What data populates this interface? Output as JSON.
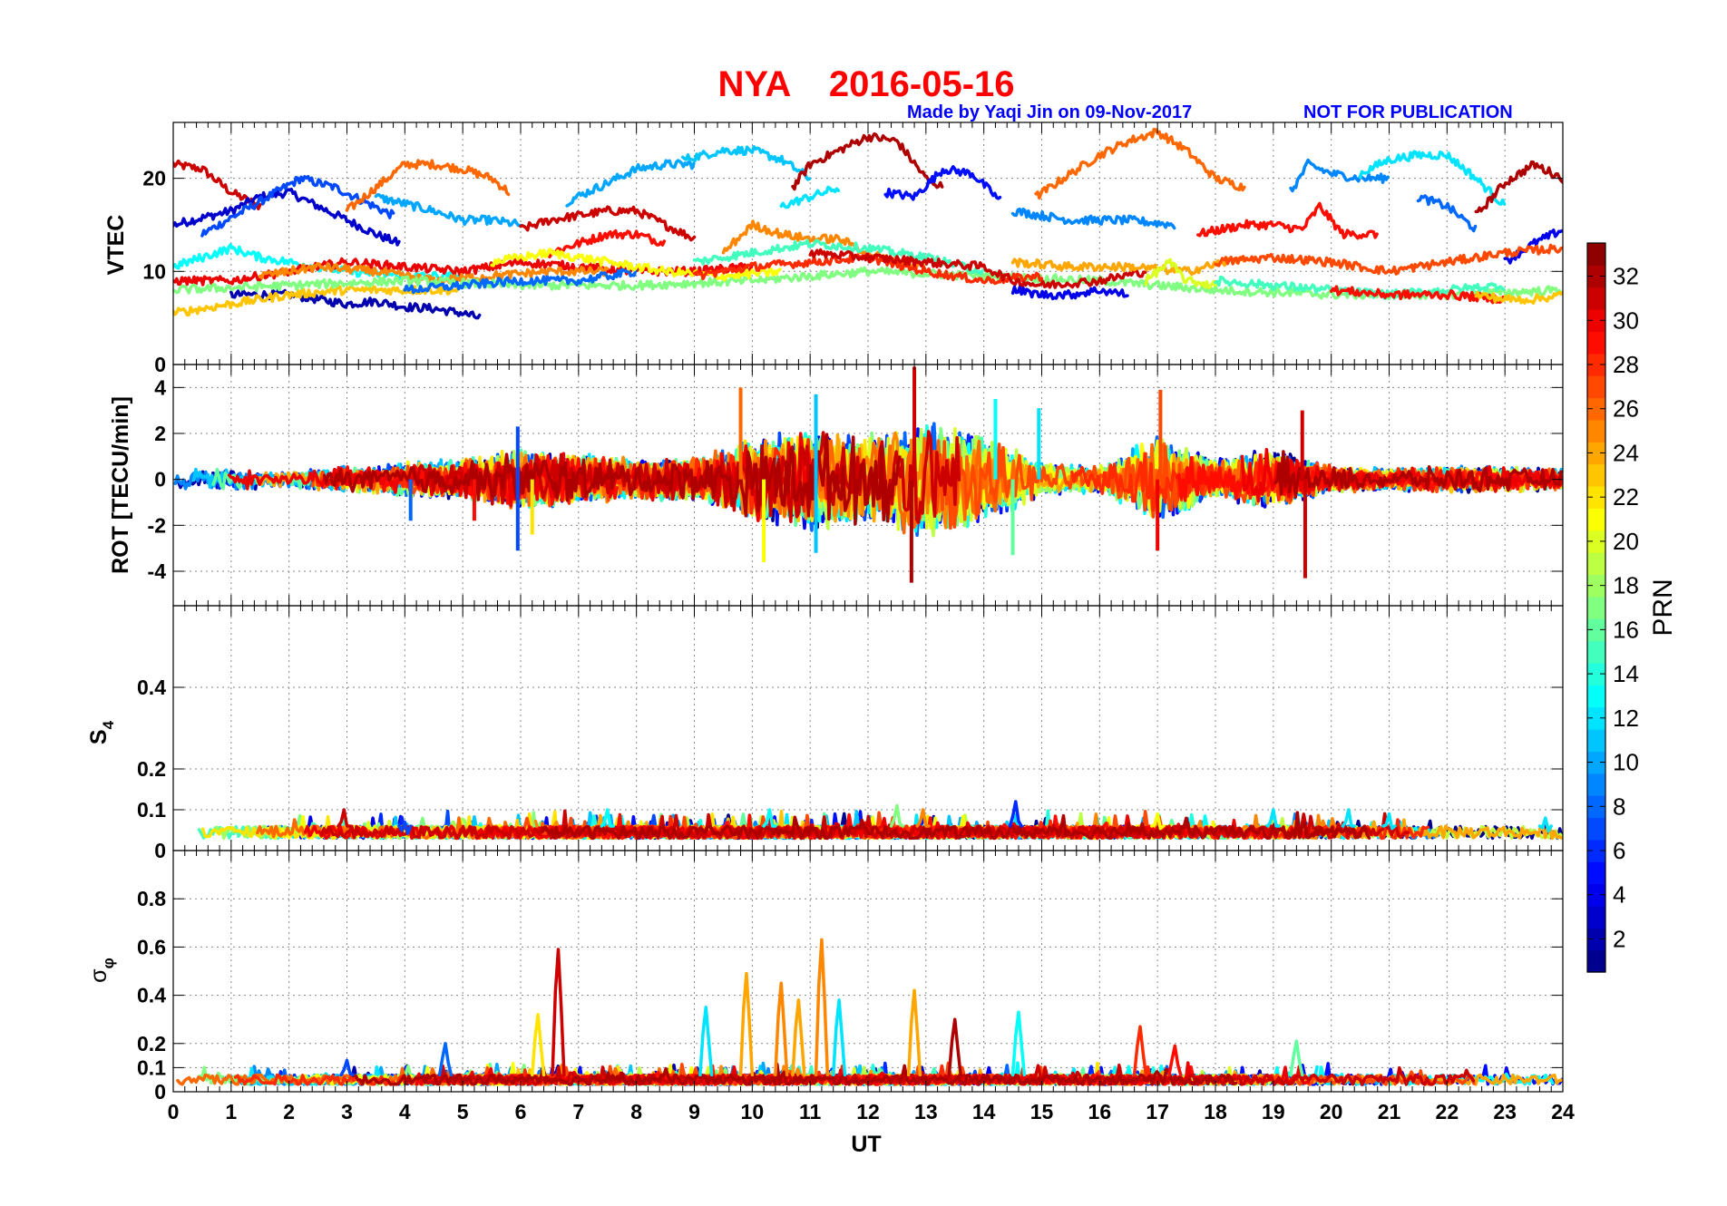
{
  "title": {
    "station": "NYA",
    "date": "2016-05-16"
  },
  "credit": {
    "made_by": "Made by Yaqi Jin on 09-Nov-2017",
    "notice": "NOT FOR PUBLICATION"
  },
  "chart_data": [
    {
      "type": "line",
      "panel": "vtec",
      "ylabel": "VTEC",
      "xlim": [
        0,
        24
      ],
      "ylim": [
        0,
        26
      ],
      "yticks": [
        0,
        10,
        20
      ],
      "ytick_labels": [
        "0",
        "10",
        "20"
      ],
      "grid": true,
      "series": [
        {
          "prn": 31,
          "x": [
            0,
            0.5,
            1,
            1.5
          ],
          "y": [
            21.5,
            21,
            18.5,
            17
          ]
        },
        {
          "prn": 3,
          "x": [
            0,
            1,
            1.5,
            2,
            2.5,
            3,
            3.5,
            3.9
          ],
          "y": [
            15,
            16.5,
            18,
            18.5,
            17,
            15.5,
            14,
            13
          ]
        },
        {
          "prn": 7,
          "x": [
            0.5,
            1.5,
            2.2,
            2.8,
            3.3,
            3.8
          ],
          "y": [
            14,
            17.5,
            20,
            19,
            17.5,
            16
          ]
        },
        {
          "prn": 2,
          "x": [
            1,
            2,
            2.5,
            3,
            3.5,
            4,
            4.5,
            5,
            5.3
          ],
          "y": [
            7.5,
            7.5,
            7,
            6.5,
            6.8,
            6.2,
            6,
            5.5,
            5
          ]
        },
        {
          "prn": 26,
          "x": [
            3,
            3.5,
            4,
            4.5,
            5,
            5.5,
            5.8
          ],
          "y": [
            16.5,
            19,
            21.5,
            21.5,
            21,
            20,
            18.5
          ]
        },
        {
          "prn": 10,
          "x": [
            3.5,
            4.5,
            5,
            5.5,
            6
          ],
          "y": [
            18,
            16.5,
            15.5,
            15.5,
            15
          ]
        },
        {
          "prn": 31,
          "x": [
            6,
            6.5,
            7,
            7.5,
            8,
            8.5,
            9
          ],
          "y": [
            14.5,
            15.5,
            16,
            16.5,
            16.5,
            15,
            13.5
          ]
        },
        {
          "prn": 29,
          "x": [
            6.5,
            7,
            7.5,
            8,
            8.5
          ],
          "y": [
            12,
            13,
            14,
            14,
            13
          ]
        },
        {
          "prn": 10,
          "x": [
            6.8,
            7.5,
            8,
            8.5,
            9
          ],
          "y": [
            17.5,
            19.5,
            21,
            21.5,
            21.5
          ]
        },
        {
          "prn": 11,
          "x": [
            8.8,
            9.5,
            10,
            10.5,
            11
          ],
          "y": [
            22,
            23,
            23,
            22,
            20
          ]
        },
        {
          "prn": 32,
          "x": [
            10.7,
            11,
            11.5,
            12,
            12.5,
            13,
            13.3
          ],
          "y": [
            19,
            21.5,
            23,
            24.5,
            24,
            20,
            19
          ]
        },
        {
          "prn": 5,
          "x": [
            12.3,
            12.8,
            13.3,
            13.8,
            14.3
          ],
          "y": [
            18.5,
            18,
            21,
            20.5,
            17.5
          ]
        },
        {
          "prn": 12,
          "x": [
            10.5,
            11,
            11.5
          ],
          "y": [
            17,
            18,
            19
          ]
        },
        {
          "prn": 26,
          "x": [
            14.9,
            15.5,
            16,
            16.5,
            17,
            17.5,
            18,
            18.5
          ],
          "y": [
            18,
            20.5,
            22.5,
            24,
            25,
            23,
            20,
            19
          ]
        },
        {
          "prn": 9,
          "x": [
            14.5,
            15,
            15.5,
            16,
            16.5,
            17.3
          ],
          "y": [
            16.5,
            16,
            15.5,
            15.5,
            15.5,
            15
          ]
        },
        {
          "prn": 29,
          "x": [
            17.7,
            18.5,
            19,
            19.5,
            19.8,
            20.2,
            20.8
          ],
          "y": [
            14,
            15,
            15,
            14.5,
            17,
            14,
            14
          ]
        },
        {
          "prn": 9,
          "x": [
            19.3,
            19.6,
            20,
            20.5,
            21
          ],
          "y": [
            18.5,
            21.5,
            20.5,
            20,
            20
          ]
        },
        {
          "prn": 12,
          "x": [
            20.5,
            21,
            21.5,
            22,
            22.5,
            23
          ],
          "y": [
            20.5,
            22,
            22.5,
            22.5,
            20,
            17
          ]
        },
        {
          "prn": 8,
          "x": [
            21.5,
            22,
            22.5
          ],
          "y": [
            18,
            17,
            14.5
          ]
        },
        {
          "prn": 32,
          "x": [
            22.5,
            23,
            23.5,
            24
          ],
          "y": [
            16,
            19.5,
            21.5,
            20
          ]
        },
        {
          "prn": 4,
          "x": [
            23,
            23.5,
            24
          ],
          "y": [
            11,
            13,
            14.5
          ]
        },
        {
          "prn": 13,
          "x": [
            0,
            0.5,
            1,
            1.5,
            2,
            3,
            4,
            5
          ],
          "y": [
            10.5,
            11.5,
            12.5,
            11.5,
            11,
            10,
            9.5,
            9.5
          ]
        },
        {
          "prn": 23,
          "x": [
            0,
            1,
            2,
            3,
            4,
            5
          ],
          "y": [
            5.5,
            6.5,
            7.5,
            8,
            8,
            8
          ]
        },
        {
          "prn": 30,
          "x": [
            0,
            1,
            2,
            3,
            4,
            5,
            6,
            7,
            8,
            9,
            10
          ],
          "y": [
            9,
            9,
            10,
            11,
            10.5,
            10,
            11,
            10.5,
            10,
            10,
            10.5
          ]
        },
        {
          "prn": 25,
          "x": [
            1.5,
            2.5,
            3.5,
            4.5,
            5.5,
            6.5,
            7.5
          ],
          "y": [
            9.5,
            10.5,
            10,
            9,
            9.5,
            10,
            10
          ]
        },
        {
          "prn": 17,
          "x": [
            0,
            2,
            4,
            6,
            8,
            10,
            12,
            14,
            16,
            18,
            20,
            22,
            24
          ],
          "y": [
            8,
            8.5,
            9,
            8.5,
            8.5,
            9,
            10,
            9.5,
            9,
            8,
            7.5,
            7.5,
            8
          ]
        },
        {
          "prn": 8,
          "x": [
            4,
            5,
            6,
            7,
            8
          ],
          "y": [
            8,
            8.5,
            9,
            9,
            10
          ]
        },
        {
          "prn": 21,
          "x": [
            5.5,
            6.5,
            7.5,
            8.5,
            9.5,
            10.5
          ],
          "y": [
            11,
            12,
            11,
            10,
            9.5,
            10
          ]
        },
        {
          "prn": 25,
          "x": [
            9.5,
            10,
            10.5,
            11,
            11.5,
            12,
            12.5,
            13
          ],
          "y": [
            12,
            15,
            14,
            13.5,
            13.5,
            12,
            11,
            10.5
          ]
        },
        {
          "prn": 15,
          "x": [
            9,
            10,
            11,
            12,
            13,
            14
          ],
          "y": [
            11,
            12,
            13,
            12.5,
            11.5,
            10
          ]
        },
        {
          "prn": 28,
          "x": [
            9,
            10,
            11,
            12,
            13,
            14,
            15
          ],
          "y": [
            9.5,
            10.5,
            11,
            11.5,
            10,
            9,
            9.5
          ]
        },
        {
          "prn": 31,
          "x": [
            11,
            12,
            13,
            14,
            14.5,
            15,
            16,
            16.8
          ],
          "y": [
            12,
            11.5,
            11,
            10.5,
            9,
            8.5,
            9,
            10
          ]
        },
        {
          "prn": 4,
          "x": [
            14.5,
            15,
            15.5,
            16,
            16.5
          ],
          "y": [
            8,
            7.5,
            7.5,
            8,
            7.5
          ]
        },
        {
          "prn": 24,
          "x": [
            14.5,
            15.5,
            16.5,
            17.5,
            18.5
          ],
          "y": [
            11,
            10.5,
            10.5,
            10,
            11.5
          ]
        },
        {
          "prn": 20,
          "x": [
            16.8,
            17.2,
            17.5,
            18
          ],
          "y": [
            9,
            11,
            9,
            8.5
          ]
        },
        {
          "prn": 27,
          "x": [
            18,
            19,
            20,
            21,
            22,
            23,
            24
          ],
          "y": [
            11,
            11.5,
            11,
            10,
            11,
            12,
            12.5
          ]
        },
        {
          "prn": 15,
          "x": [
            18,
            19,
            20,
            21,
            22,
            23
          ],
          "y": [
            9,
            8.5,
            8,
            7.5,
            8,
            8.5
          ]
        },
        {
          "prn": 29,
          "x": [
            20,
            21,
            22,
            23
          ],
          "y": [
            8,
            7.5,
            7.5,
            7
          ]
        },
        {
          "prn": 23,
          "x": [
            22.5,
            23,
            23.5,
            24
          ],
          "y": [
            7.5,
            7,
            7,
            7.5
          ]
        }
      ]
    },
    {
      "type": "line",
      "panel": "rot",
      "ylabel": "ROT [TECU/min]",
      "xlim": [
        0,
        24
      ],
      "ylim": [
        -5.5,
        5
      ],
      "yticks": [
        -4,
        -2,
        0,
        2,
        4
      ],
      "ytick_labels": [
        "-4",
        "-2",
        "0",
        "2",
        "4"
      ],
      "grid": true,
      "envelope": {
        "x": [
          0,
          1,
          2,
          3,
          4,
          5,
          6,
          7,
          8,
          9,
          10,
          11,
          12,
          13,
          14,
          15,
          16,
          17,
          18,
          19,
          20,
          21,
          22,
          23,
          24
        ],
        "amplitude": [
          0.5,
          0.5,
          0.4,
          0.6,
          0.8,
          0.9,
          1.4,
          1.2,
          0.9,
          1.0,
          1.8,
          2.3,
          2.0,
          2.6,
          2.0,
          0.8,
          0.6,
          2.0,
          0.9,
          1.4,
          0.6,
          0.5,
          0.6,
          0.6,
          0.5
        ]
      },
      "spikes": [
        {
          "prn": 7,
          "x": 5.95,
          "y": 2.3
        },
        {
          "prn": 7,
          "x": 5.95,
          "y": -3.1
        },
        {
          "prn": 26,
          "x": 9.8,
          "y": 4.0
        },
        {
          "prn": 21,
          "x": 10.2,
          "y": -3.6
        },
        {
          "prn": 11,
          "x": 11.1,
          "y": 3.7
        },
        {
          "prn": 11,
          "x": 11.1,
          "y": -3.2
        },
        {
          "prn": 31,
          "x": 12.8,
          "y": 4.9
        },
        {
          "prn": 32,
          "x": 12.75,
          "y": -4.5
        },
        {
          "prn": 13,
          "x": 14.2,
          "y": 3.5
        },
        {
          "prn": 16,
          "x": 14.5,
          "y": -3.3
        },
        {
          "prn": 12,
          "x": 14.95,
          "y": 3.1
        },
        {
          "prn": 27,
          "x": 17.05,
          "y": 3.9
        },
        {
          "prn": 30,
          "x": 17.0,
          "y": -3.1
        },
        {
          "prn": 31,
          "x": 19.5,
          "y": 3.0
        },
        {
          "prn": 31,
          "x": 19.55,
          "y": -4.3
        },
        {
          "prn": 8,
          "x": 4.1,
          "y": -1.8
        },
        {
          "prn": 29,
          "x": 5.2,
          "y": -1.8
        },
        {
          "prn": 22,
          "x": 6.2,
          "y": -2.4
        }
      ]
    },
    {
      "type": "line",
      "panel": "s4",
      "ylabel_main": "S",
      "ylabel_sub": "4",
      "xlim": [
        0,
        24
      ],
      "ylim": [
        0,
        0.6
      ],
      "yticks": [
        0,
        0.1,
        0.2,
        0.4
      ],
      "ytick_labels": [
        "0",
        "0.1",
        "0.2",
        "0.4"
      ],
      "grid": true,
      "baseline": [
        0.03,
        0.06
      ],
      "peaks": [
        {
          "prn": 31,
          "x": 2.95,
          "y": 0.1
        },
        {
          "prn": 7,
          "x": 4.0,
          "y": 0.07
        },
        {
          "prn": 13,
          "x": 7.5,
          "y": 0.1
        },
        {
          "prn": 13,
          "x": 10.3,
          "y": 0.1
        },
        {
          "prn": 17,
          "x": 12.5,
          "y": 0.11
        },
        {
          "prn": 25,
          "x": 12.95,
          "y": 0.1
        },
        {
          "prn": 6,
          "x": 14.55,
          "y": 0.12
        },
        {
          "prn": 21,
          "x": 17.0,
          "y": 0.09
        },
        {
          "prn": 12,
          "x": 19.0,
          "y": 0.1
        },
        {
          "prn": 12,
          "x": 20.3,
          "y": 0.1
        },
        {
          "prn": 12,
          "x": 21.0,
          "y": 0.09
        },
        {
          "prn": 12,
          "x": 23.7,
          "y": 0.08
        }
      ]
    },
    {
      "type": "line",
      "panel": "sigma_phi",
      "ylabel_main": "σ",
      "ylabel_sub": "φ",
      "xlabel": "UT",
      "xlim": [
        0,
        24
      ],
      "ylim": [
        0,
        1
      ],
      "xticks": [
        0,
        1,
        2,
        3,
        4,
        5,
        6,
        7,
        8,
        9,
        10,
        11,
        12,
        13,
        14,
        15,
        16,
        17,
        18,
        19,
        20,
        21,
        22,
        23,
        24
      ],
      "xtick_labels": [
        "0",
        "1",
        "2",
        "3",
        "4",
        "5",
        "6",
        "7",
        "8",
        "9",
        "10",
        "11",
        "12",
        "13",
        "14",
        "15",
        "16",
        "17",
        "18",
        "19",
        "20",
        "21",
        "22",
        "23",
        "24"
      ],
      "yticks": [
        0,
        0.1,
        0.2,
        0.4,
        0.6,
        0.8
      ],
      "ytick_labels": [
        "0",
        "0.1",
        "0.2",
        "0.4",
        "0.6",
        "0.8"
      ],
      "grid": true,
      "baseline": [
        0.03,
        0.07
      ],
      "peaks": [
        {
          "prn": 22,
          "x": 6.3,
          "y": 0.32
        },
        {
          "prn": 31,
          "x": 6.65,
          "y": 0.59
        },
        {
          "prn": 12,
          "x": 9.2,
          "y": 0.35
        },
        {
          "prn": 24,
          "x": 9.9,
          "y": 0.49
        },
        {
          "prn": 25,
          "x": 10.5,
          "y": 0.45
        },
        {
          "prn": 24,
          "x": 10.8,
          "y": 0.38
        },
        {
          "prn": 25,
          "x": 11.2,
          "y": 0.63
        },
        {
          "prn": 12,
          "x": 11.5,
          "y": 0.38
        },
        {
          "prn": 24,
          "x": 12.8,
          "y": 0.42
        },
        {
          "prn": 32,
          "x": 13.5,
          "y": 0.3
        },
        {
          "prn": 13,
          "x": 14.6,
          "y": 0.33
        },
        {
          "prn": 28,
          "x": 16.7,
          "y": 0.27
        },
        {
          "prn": 29,
          "x": 17.3,
          "y": 0.19
        },
        {
          "prn": 16,
          "x": 19.4,
          "y": 0.21
        },
        {
          "prn": 7,
          "x": 3.0,
          "y": 0.13
        },
        {
          "prn": 8,
          "x": 4.7,
          "y": 0.2
        }
      ]
    }
  ],
  "colorbar": {
    "label": "PRN",
    "min": 1,
    "max": 33,
    "ticks": [
      2,
      4,
      6,
      8,
      10,
      12,
      14,
      16,
      18,
      20,
      22,
      24,
      26,
      28,
      30,
      32
    ],
    "tick_labels": [
      "2",
      "4",
      "6",
      "8",
      "10",
      "12",
      "14",
      "16",
      "18",
      "20",
      "22",
      "24",
      "26",
      "28",
      "30",
      "32"
    ],
    "colormap": "jet"
  }
}
